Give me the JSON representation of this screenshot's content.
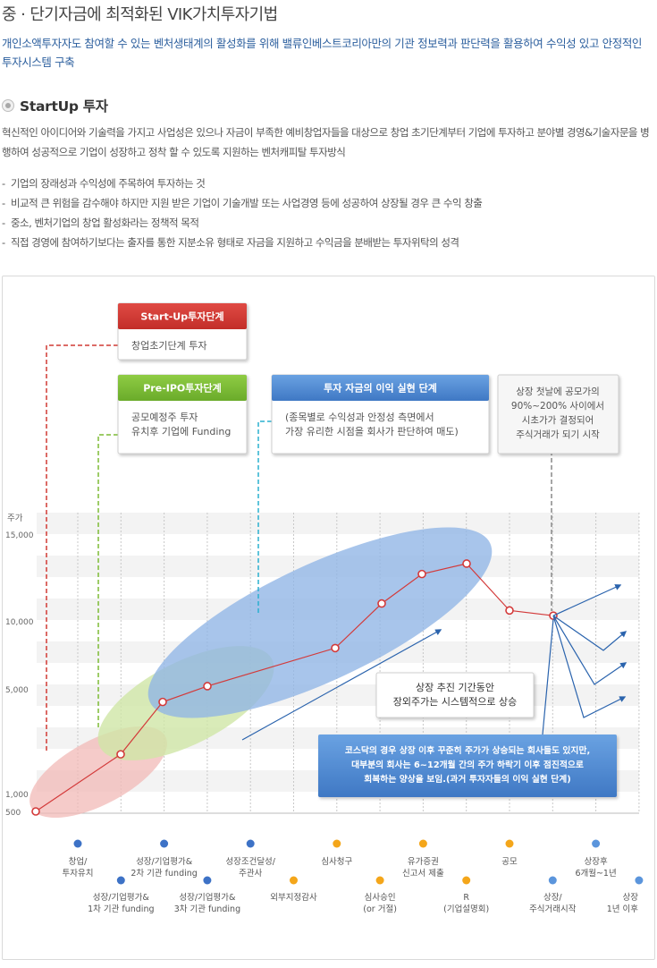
{
  "page": {
    "title": "중 · 단기자금에 최적화된 VIK가치투자기법",
    "intro": "개인소액투자자도 참여할 수 있는 벤처생태계의 활성화를 위해 밸류인베스트코리아만의 기관 정보력과 판단력을 활용하여 수익성 있고 안정적인 투자시스템 구축"
  },
  "section": {
    "title": "StartUp 투자",
    "description": "혁신적인 아이디어와 기술력을 가지고 사업성은 있으나 자금이 부족한 예비창업자들을 대상으로 창업 초기단계부터 기업에 투자하고 분야별 경영&기술자문을 병행하여 성공적으로 기업이 성장하고 정착 할 수 있도록 지원하는 벤처캐피탈 투자방식",
    "features": [
      "기업의 장래성과 수익성에 주목하여 투자하는 것",
      "비교적 큰 위험을 감수해야 하지만 지원 받은 기업이 기술개발 또는 사업경영 등에 성공하여 상장될 경우 큰 수익 창출",
      "중소, 벤처기업의 창업 활성화라는 정책적 목적",
      "직접 경영에 참여하기보다는 출자를 통한 지분소유 형태로 자금을 지원하고 수익금을 분배받는 투자위탁의 성격"
    ]
  },
  "diagram": {
    "boxes": {
      "startup": {
        "header": "Start-Up투자단계",
        "lines": [
          "창업초기단계 투자"
        ]
      },
      "preipo": {
        "header": "Pre-IPO투자단계",
        "lines": [
          "공모예정주 투자",
          "유치후 기업에 Funding"
        ]
      },
      "realize": {
        "header": "투자 자금의 이익 실현 단계",
        "lines": [
          "(종목별로 수익성과 안정성 측면에서",
          "가장 유리한 시점을 회사가 판단하여 매도)"
        ]
      },
      "listing": {
        "lines": [
          "상장 첫날에 공모가의",
          "90%~200% 사이에서",
          "시초가가 결정되어",
          "주식거래가 되기 시작"
        ]
      }
    },
    "callouts": {
      "rise": [
        "상장 추진 기간동안",
        "장외주가는 시스템적으로 상승"
      ],
      "kosdaq": [
        "코스닥의 경우 상장 이후 꾸준히 주가가 상승되는 회사들도 있지만,",
        "대부분의 회사는 6~12개월 간의 주가 하락기 이후 점진적으로",
        "회복하는 양상을 보임.(과거 투자자들의 이익 실현 단계)"
      ]
    },
    "colors": {
      "startup": "#d13a34",
      "preipo": "#7dbb35",
      "realize": "#4b86cc",
      "line": "#d33a3a",
      "dot_blue": "#3d72c6",
      "dot_orange": "#f4a61a",
      "dot_light": "#5b95dc"
    }
  },
  "chart_data": {
    "type": "line",
    "title": "",
    "ylabel": "주가",
    "y_ticks": [
      500,
      1000,
      5000,
      10000,
      15000
    ],
    "y_tick_labels": [
      "500",
      "1,000",
      "5,000",
      "10,000",
      "15,000"
    ],
    "series": [
      {
        "values": [
          500,
          2500,
          4500,
          5200,
          8000,
          11000,
          12700,
          13300,
          10600,
          10300
        ]
      }
    ],
    "stages": [
      {
        "label": [
          "창업/",
          "투자유치"
        ],
        "row": "top",
        "color": "blue"
      },
      {
        "label": [
          "성장/기업평가&",
          "1차 기관 funding"
        ],
        "row": "bottom",
        "color": "blue"
      },
      {
        "label": [
          "성장/기업평가&",
          "2차 기관 funding"
        ],
        "row": "top",
        "color": "blue"
      },
      {
        "label": [
          "성장/기업평가&",
          "3차 기관 funding"
        ],
        "row": "bottom",
        "color": "blue"
      },
      {
        "label": [
          "성장조건달성/",
          "주관사"
        ],
        "row": "top",
        "color": "blue"
      },
      {
        "label": [
          "외부지정감사"
        ],
        "row": "bottom",
        "color": "orange"
      },
      {
        "label": [
          "심사청구"
        ],
        "row": "top",
        "color": "orange"
      },
      {
        "label": [
          "심사승인",
          "(or 거절)"
        ],
        "row": "bottom",
        "color": "orange"
      },
      {
        "label": [
          "유가증권",
          "신고서 제출"
        ],
        "row": "top",
        "color": "orange"
      },
      {
        "label": [
          "R",
          "(기업설명회)"
        ],
        "row": "bottom",
        "color": "orange"
      },
      {
        "label": [
          "공모"
        ],
        "row": "top",
        "color": "orange"
      },
      {
        "label": [
          "상장/",
          "주식거래시작"
        ],
        "row": "bottom",
        "color": "light"
      },
      {
        "label": [
          "상장후",
          "6개월~1년"
        ],
        "row": "top",
        "color": "light"
      },
      {
        "label": [
          "상장",
          "1년 이후"
        ],
        "row": "bottom",
        "color": "light"
      }
    ],
    "grid": true,
    "legend": "none"
  }
}
